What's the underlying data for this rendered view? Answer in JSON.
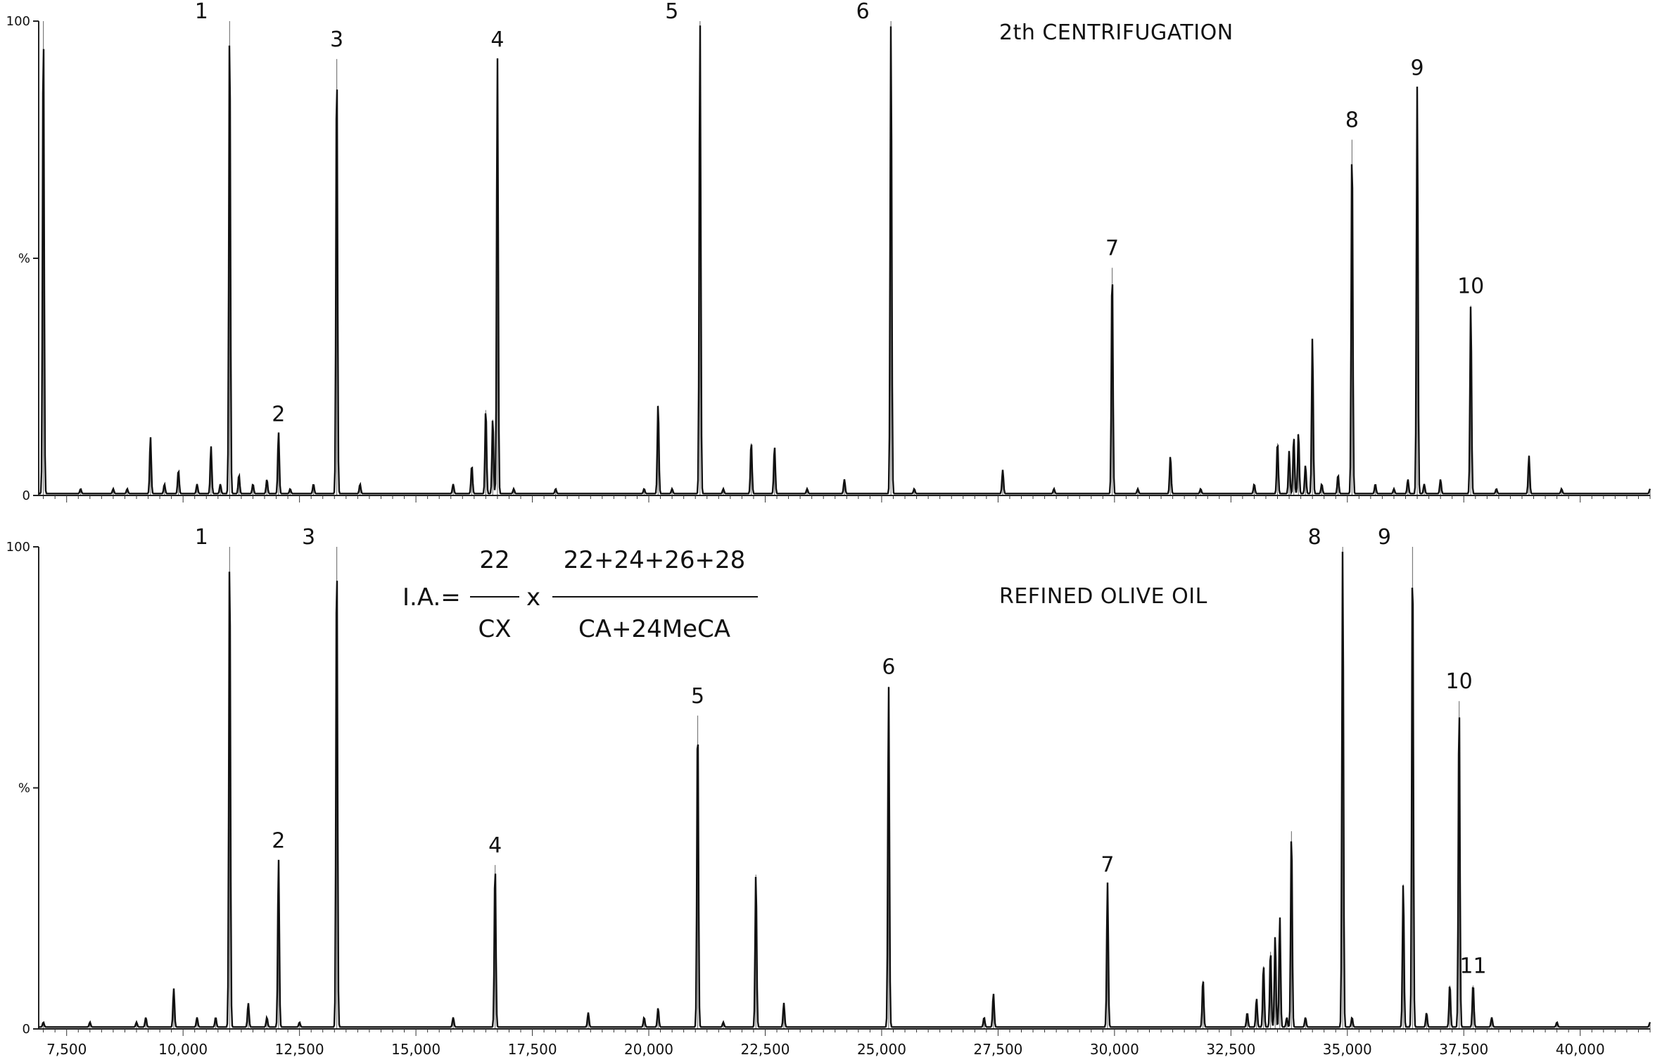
{
  "chart_data": [
    {
      "type": "line",
      "title": "2th CENTRIFUGATION",
      "xlabel": "",
      "ylabel": "",
      "xlim": [
        6900,
        41500
      ],
      "ylim": [
        0,
        100
      ],
      "ytick_labels": [
        "100",
        "%",
        "0"
      ],
      "yticks": [
        100,
        50,
        0
      ],
      "show_xtick_labels": false,
      "peak_labels": [
        {
          "label": "1",
          "x": 11000
        },
        {
          "label": "2",
          "x": 12050
        },
        {
          "label": "3",
          "x": 13300
        },
        {
          "label": "4",
          "x": 16750
        },
        {
          "label": "5",
          "x": 21100
        },
        {
          "label": "6",
          "x": 25200
        },
        {
          "label": "7",
          "x": 29950
        },
        {
          "label": "8",
          "x": 35100
        },
        {
          "label": "9",
          "x": 36500
        },
        {
          "label": "10",
          "x": 37650
        }
      ],
      "series": [
        {
          "x": [
            7000,
            7800,
            8500,
            8800,
            9300,
            9600,
            9900,
            10300,
            10600,
            10800,
            11000,
            11200,
            11500,
            11800,
            12050,
            12300,
            12800,
            13300,
            13800,
            15800,
            16200,
            16500,
            16650,
            16750,
            17100,
            18000,
            19900,
            20200,
            20500,
            21100,
            21600,
            22200,
            22700,
            23400,
            24200,
            25200,
            25700,
            27600,
            28700,
            29950,
            30500,
            31200,
            31850,
            33000,
            33500,
            33750,
            33850,
            33950,
            34100,
            34250,
            34450,
            34800,
            35100,
            35600,
            36000,
            36300,
            36500,
            36650,
            37000,
            37650,
            38200,
            38900,
            39600,
            41500
          ],
          "y": [
            100,
            1,
            1,
            1,
            12,
            2,
            5,
            2,
            10,
            2,
            100,
            4,
            2,
            3,
            13,
            1,
            2,
            92,
            2,
            2,
            6,
            18,
            16,
            92,
            1,
            1,
            1,
            19,
            1,
            100,
            1,
            11,
            10,
            1,
            3,
            100,
            1,
            5,
            1,
            48,
            1,
            8,
            1,
            2,
            11,
            9,
            12,
            13,
            6,
            33,
            2,
            4,
            75,
            2,
            1,
            3,
            86,
            2,
            3,
            40,
            1,
            8,
            1,
            1
          ]
        }
      ]
    },
    {
      "type": "line",
      "title": "REFINED OLIVE OIL",
      "xlabel": "",
      "ylabel": "",
      "xlim": [
        6900,
        41500
      ],
      "ylim": [
        0,
        100
      ],
      "ytick_labels": [
        "100",
        "%",
        "0"
      ],
      "yticks": [
        100,
        50,
        0
      ],
      "xticks": [
        7500,
        10000,
        12500,
        15000,
        17500,
        20000,
        22500,
        25000,
        27500,
        30000,
        32500,
        35000,
        37500,
        40000
      ],
      "xtick_labels": [
        "7,500",
        "10,000",
        "12,500",
        "15,000",
        "17,500",
        "20,000",
        "22,500",
        "25,000",
        "27,500",
        "30,000",
        "32,500",
        "35,000",
        "37,500",
        "40,000"
      ],
      "peak_labels": [
        {
          "label": "1",
          "x": 11000
        },
        {
          "label": "2",
          "x": 12050
        },
        {
          "label": "3",
          "x": 13300
        },
        {
          "label": "4",
          "x": 16700
        },
        {
          "label": "5",
          "x": 21050
        },
        {
          "label": "6",
          "x": 25150
        },
        {
          "label": "7",
          "x": 29850
        },
        {
          "label": "8",
          "x": 34900
        },
        {
          "label": "9",
          "x": 36400
        },
        {
          "label": "10",
          "x": 37400
        },
        {
          "label": "11",
          "x": 37700
        }
      ],
      "series": [
        {
          "x": [
            7000,
            8000,
            9000,
            9200,
            9800,
            10300,
            10700,
            11000,
            11400,
            11800,
            12050,
            12500,
            13300,
            15800,
            16700,
            18700,
            19900,
            20200,
            21050,
            21600,
            22300,
            22900,
            25150,
            27200,
            27400,
            29850,
            31900,
            32850,
            33050,
            33200,
            33350,
            33450,
            33550,
            33700,
            33800,
            34100,
            34900,
            35100,
            36200,
            36400,
            36700,
            37200,
            37400,
            37700,
            38100,
            39500,
            41500
          ],
          "y": [
            1,
            1,
            1,
            2,
            8,
            2,
            2,
            100,
            5,
            2,
            35,
            1,
            100,
            2,
            34,
            3,
            2,
            4,
            65,
            1,
            32,
            5,
            71,
            2,
            7,
            30,
            10,
            3,
            6,
            13,
            16,
            19,
            23,
            2,
            41,
            2,
            100,
            2,
            30,
            100,
            3,
            9,
            68,
            9,
            2,
            1,
            1
          ]
        }
      ]
    }
  ],
  "formula": {
    "prefix": "I.A.=",
    "numerator_1": "22",
    "denominator_1": "CX",
    "times": "x",
    "numerator_2": "22+24+26+28",
    "denominator_2": "CA+24MeCA"
  }
}
